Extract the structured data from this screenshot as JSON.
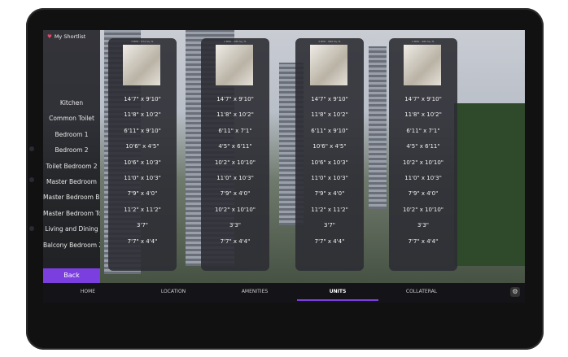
{
  "shortlist": {
    "label": "My Shortlist"
  },
  "row_labels": [
    "Kitchen",
    "Common Toilet",
    "Bedroom 1",
    "Bedroom 2",
    "Toilet Bedroom 2",
    "Master Bedroom",
    "Master Bedroom Ba",
    "Master Bedroom To",
    "Living and Dining",
    "Balcony Bedroom 2"
  ],
  "back": {
    "label": "Back"
  },
  "cards": [
    {
      "title": "3 BHK - 874 Sq. ft.",
      "values": [
        "14'7\" x 9'10\"",
        "11'8\" x 10'2\"",
        "6'11\" x 9'10\"",
        "10'6\" x 4'5\"",
        "10'6\" x 10'3\"",
        "11'0\" x 10'3\"",
        "7'9\" x 4'0\"",
        "11'2\" x 11'2\"",
        "3'7\"",
        "7'7\" x 4'4\""
      ]
    },
    {
      "title": "2 BHK - 489 Sq. ft.",
      "values": [
        "14'7\" x 9'10\"",
        "11'8\" x 10'2\"",
        "6'11\" x 7'1\"",
        "4'5\" x 6'11\"",
        "10'2\" x 10'10\"",
        "11'0\" x 10'3\"",
        "7'9\" x 4'0\"",
        "10'2\" x 10'10\"",
        "3'3\"",
        "7'7\" x 4'4\""
      ]
    },
    {
      "title": "3 BHK - 889 Sq. ft.",
      "values": [
        "14'7\" x 9'10\"",
        "11'8\" x 10'2\"",
        "6'11\" x 9'10\"",
        "10'6\" x 4'5\"",
        "10'6\" x 10'3\"",
        "11'0\" x 10'3\"",
        "7'9\" x 4'0\"",
        "11'2\" x 11'2\"",
        "3'7\"",
        "7'7\" x 4'4\""
      ]
    },
    {
      "title": "2 BHK - 489 Sq. ft.",
      "values": [
        "14'7\" x 9'10\"",
        "11'8\" x 10'2\"",
        "6'11\" x 7'1\"",
        "4'5\" x 6'11\"",
        "10'2\" x 10'10\"",
        "11'0\" x 10'3\"",
        "7'9\" x 4'0\"",
        "10'2\" x 10'10\"",
        "3'3\"",
        "7'7\" x 4'4\""
      ]
    }
  ],
  "nav": {
    "items": [
      "HOME",
      "LOCATION",
      "AMENITIES",
      "UNITS",
      "COLLATERAL"
    ],
    "active": 3
  }
}
